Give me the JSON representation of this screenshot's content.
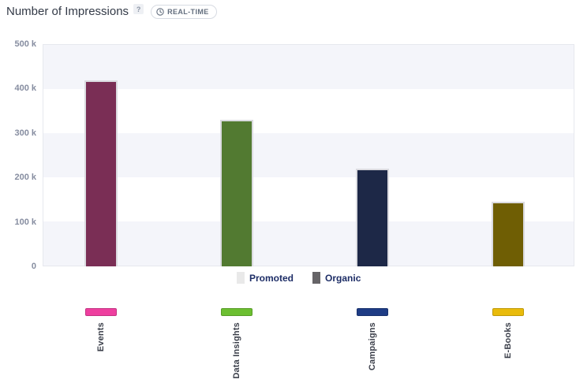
{
  "header": {
    "title": "Number of Impressions",
    "help_glyph": "?",
    "realtime_label": "REAL-TIME"
  },
  "chart_data": {
    "type": "bar",
    "title": "Number of Impressions",
    "categories": [
      "Events",
      "Data Insights",
      "Campaigns",
      "E-Books"
    ],
    "values": [
      418000,
      330000,
      220000,
      145000
    ],
    "bar_colors": [
      "#7a2e55",
      "#527a31",
      "#1d2847",
      "#6f5e04"
    ],
    "category_swatch_colors": [
      "#ee3f9f",
      "#6cbf31",
      "#1e3c85",
      "#e9bb0b"
    ],
    "xlabel": "",
    "ylabel": "",
    "ylim": [
      0,
      500000
    ],
    "yticks": [
      {
        "value": 500000,
        "label": "500 k"
      },
      {
        "value": 400000,
        "label": "400 k"
      },
      {
        "value": 300000,
        "label": "300 k"
      },
      {
        "value": 200000,
        "label": "200 k"
      },
      {
        "value": 100000,
        "label": "100 k"
      },
      {
        "value": 0,
        "label": "0"
      }
    ],
    "grid": "banded-horizontal",
    "legend_position": "bottom",
    "legend": [
      {
        "label": "Promoted",
        "color": "#e9e9e9"
      },
      {
        "label": "Organic",
        "color": "#666467"
      }
    ]
  }
}
